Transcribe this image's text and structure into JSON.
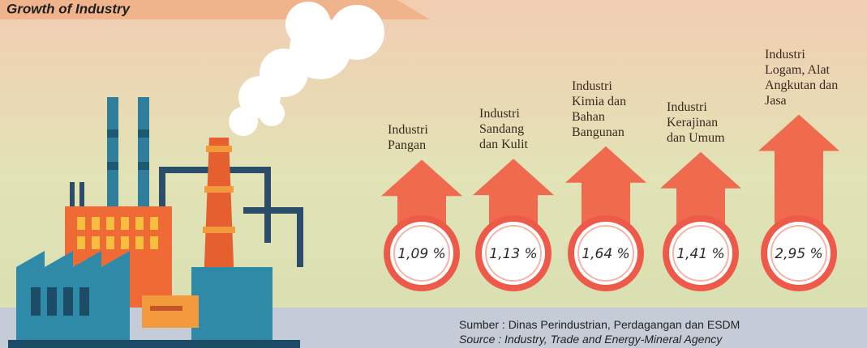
{
  "chart_data": {
    "type": "arrow",
    "title": "Growth of Industry",
    "categories": [
      "Industri\nPangan",
      "Industri\nSandang\ndan Kulit",
      "Industri\nKimia dan\nBahan\nBangunan",
      "Industri\nKerajinan\ndan Umum",
      "Industri\nLogam, Alat\nAngkutan dan\nJasa"
    ],
    "values": [
      1.09,
      1.13,
      1.64,
      1.41,
      2.95
    ],
    "value_labels": [
      "1,09 %",
      "1,13 %",
      "1,64 %",
      "1,41 %",
      "2,95 %"
    ],
    "color": "#f06a4e",
    "source": [
      "Sumber : Dinas Perindustrian, Perdagangan dan ESDM",
      "Source : Industry, Trade and Energy-Mineral Agency"
    ]
  }
}
